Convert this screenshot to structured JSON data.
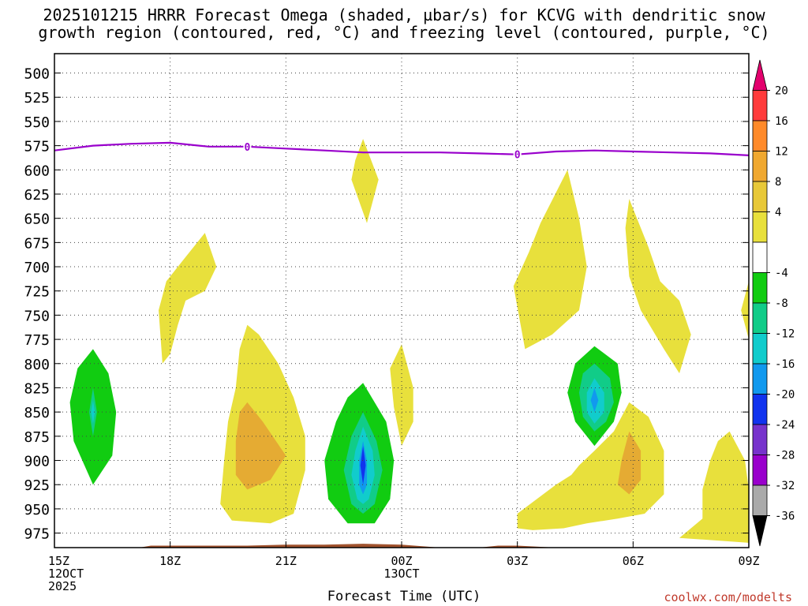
{
  "chart_data": {
    "type": "heatmap",
    "title_line1": "2025101215 HRRR Forecast Omega (shaded, µbar/s) for KCVG with dendritic snow",
    "title_line2": "growth region (contoured, red, °C) and freezing level (contoured, purple, °C)",
    "xlabel": "Forecast Time (UTC)",
    "credit": "coolwx.com/modelts",
    "x_range_hours": [
      0,
      18
    ],
    "x_ticks": [
      {
        "h": 0,
        "label": "15Z",
        "sub": [
          "12OCT",
          "2025"
        ]
      },
      {
        "h": 3,
        "label": "18Z",
        "sub": []
      },
      {
        "h": 6,
        "label": "21Z",
        "sub": []
      },
      {
        "h": 9,
        "label": "00Z",
        "sub": [
          "13OCT"
        ]
      },
      {
        "h": 12,
        "label": "03Z",
        "sub": []
      },
      {
        "h": 15,
        "label": "06Z",
        "sub": []
      },
      {
        "h": 18,
        "label": "09Z",
        "sub": []
      }
    ],
    "y_range_mb": [
      480,
      990
    ],
    "y_ticks": [
      500,
      525,
      550,
      575,
      600,
      625,
      650,
      675,
      700,
      725,
      750,
      775,
      800,
      825,
      850,
      875,
      900,
      925,
      950,
      975
    ],
    "freezing_level": {
      "color": "#9900cc",
      "label": "0",
      "label_points": [
        {
          "h": 5.0,
          "p": 576
        },
        {
          "h": 12.0,
          "p": 584
        }
      ],
      "points": [
        [
          0,
          580
        ],
        [
          1,
          575
        ],
        [
          2,
          573
        ],
        [
          3,
          572
        ],
        [
          4,
          576
        ],
        [
          5,
          576
        ],
        [
          6,
          578
        ],
        [
          7,
          580
        ],
        [
          8,
          582
        ],
        [
          9,
          582
        ],
        [
          10,
          582
        ],
        [
          11,
          583
        ],
        [
          12,
          584
        ],
        [
          13,
          581
        ],
        [
          14,
          580
        ],
        [
          15,
          581
        ],
        [
          16,
          582
        ],
        [
          17,
          583
        ],
        [
          18,
          585
        ]
      ]
    },
    "omega_regions": [
      {
        "level": "4",
        "points": [
          [
            2.8,
            800
          ],
          [
            2.7,
            745
          ],
          [
            2.9,
            715
          ],
          [
            3.3,
            695
          ],
          [
            3.9,
            665
          ],
          [
            4.2,
            700
          ],
          [
            3.9,
            725
          ],
          [
            3.4,
            735
          ],
          [
            3.2,
            760
          ],
          [
            3.0,
            790
          ]
        ]
      },
      {
        "level": "4",
        "points": [
          [
            8.0,
            568
          ],
          [
            8.4,
            610
          ],
          [
            8.1,
            655
          ],
          [
            7.7,
            610
          ],
          [
            7.8,
            590
          ]
        ]
      },
      {
        "level": "4",
        "points": [
          [
            5.0,
            760
          ],
          [
            5.3,
            770
          ],
          [
            5.8,
            800
          ],
          [
            6.2,
            835
          ],
          [
            6.5,
            875
          ],
          [
            6.5,
            910
          ],
          [
            6.2,
            955
          ],
          [
            5.6,
            965
          ],
          [
            4.6,
            962
          ],
          [
            4.3,
            945
          ],
          [
            4.4,
            900
          ],
          [
            4.5,
            860
          ],
          [
            4.7,
            825
          ],
          [
            4.8,
            785
          ]
        ]
      },
      {
        "level": "8",
        "points": [
          [
            5.0,
            840
          ],
          [
            5.4,
            860
          ],
          [
            6.0,
            895
          ],
          [
            5.6,
            920
          ],
          [
            5.0,
            930
          ],
          [
            4.7,
            915
          ],
          [
            4.7,
            880
          ],
          [
            4.8,
            850
          ]
        ]
      },
      {
        "level": "4",
        "points": [
          [
            9.0,
            780
          ],
          [
            9.3,
            825
          ],
          [
            9.3,
            860
          ],
          [
            9.0,
            885
          ],
          [
            8.8,
            845
          ],
          [
            8.7,
            805
          ]
        ]
      },
      {
        "level": "4",
        "points": [
          [
            13.3,
            600
          ],
          [
            13.6,
            650
          ],
          [
            13.8,
            700
          ],
          [
            13.6,
            745
          ],
          [
            12.9,
            770
          ],
          [
            12.2,
            785
          ],
          [
            11.9,
            720
          ],
          [
            12.3,
            685
          ],
          [
            12.6,
            655
          ]
        ]
      },
      {
        "level": "4",
        "points": [
          [
            14.9,
            630
          ],
          [
            15.4,
            680
          ],
          [
            15.7,
            715
          ],
          [
            16.2,
            735
          ],
          [
            16.5,
            770
          ],
          [
            16.2,
            810
          ],
          [
            15.8,
            785
          ],
          [
            15.2,
            745
          ],
          [
            14.9,
            710
          ],
          [
            14.8,
            660
          ]
        ]
      },
      {
        "level": "4",
        "points": [
          [
            18,
            715
          ],
          [
            17.8,
            745
          ],
          [
            18,
            775
          ]
        ]
      },
      {
        "level": "4",
        "points": [
          [
            12.0,
            955
          ],
          [
            12.5,
            940
          ],
          [
            13.0,
            925
          ],
          [
            13.4,
            915
          ],
          [
            13.6,
            905
          ],
          [
            14.0,
            890
          ],
          [
            14.5,
            870
          ],
          [
            14.9,
            840
          ],
          [
            15.4,
            855
          ],
          [
            15.8,
            890
          ],
          [
            15.8,
            935
          ],
          [
            15.3,
            955
          ],
          [
            14.6,
            960
          ],
          [
            13.8,
            965
          ],
          [
            13.2,
            970
          ],
          [
            12.4,
            972
          ],
          [
            12.0,
            970
          ]
        ]
      },
      {
        "level": "8",
        "points": [
          [
            14.9,
            870
          ],
          [
            15.2,
            890
          ],
          [
            15.2,
            920
          ],
          [
            14.9,
            935
          ],
          [
            14.6,
            925
          ],
          [
            14.7,
            900
          ]
        ]
      },
      {
        "level": "4",
        "points": [
          [
            16.2,
            980
          ],
          [
            16.8,
            960
          ],
          [
            16.8,
            930
          ],
          [
            17.0,
            900
          ],
          [
            17.2,
            880
          ],
          [
            17.5,
            870
          ],
          [
            17.9,
            900
          ],
          [
            18,
            930
          ],
          [
            18,
            985
          ]
        ]
      },
      {
        "level": "4",
        "points": [
          [
            17.0,
            980
          ],
          [
            17.3,
            950
          ],
          [
            18,
            948
          ],
          [
            18,
            985
          ]
        ]
      },
      {
        "level": "-4",
        "points": [
          [
            1.0,
            785
          ],
          [
            1.4,
            810
          ],
          [
            1.6,
            850
          ],
          [
            1.5,
            895
          ],
          [
            1.0,
            925
          ],
          [
            0.5,
            880
          ],
          [
            0.4,
            840
          ],
          [
            0.6,
            805
          ]
        ]
      },
      {
        "level": "-8",
        "points": [
          [
            1.0,
            825
          ],
          [
            1.1,
            850
          ],
          [
            1.0,
            875
          ],
          [
            0.9,
            850
          ]
        ]
      },
      {
        "level": "-12",
        "points": [
          [
            1.0,
            838
          ],
          [
            1.05,
            850
          ],
          [
            1.0,
            862
          ],
          [
            0.95,
            850
          ]
        ]
      },
      {
        "level": "-4",
        "points": [
          [
            8.0,
            820
          ],
          [
            8.6,
            860
          ],
          [
            8.8,
            900
          ],
          [
            8.7,
            940
          ],
          [
            8.3,
            965
          ],
          [
            7.6,
            965
          ],
          [
            7.1,
            940
          ],
          [
            7.0,
            900
          ],
          [
            7.3,
            860
          ],
          [
            7.6,
            835
          ]
        ]
      },
      {
        "level": "-8",
        "points": [
          [
            8.0,
            850
          ],
          [
            8.35,
            880
          ],
          [
            8.5,
            910
          ],
          [
            8.3,
            945
          ],
          [
            8.0,
            955
          ],
          [
            7.7,
            945
          ],
          [
            7.5,
            910
          ],
          [
            7.7,
            875
          ]
        ]
      },
      {
        "level": "-12",
        "points": [
          [
            8.0,
            865
          ],
          [
            8.25,
            890
          ],
          [
            8.3,
            915
          ],
          [
            8.15,
            940
          ],
          [
            8.0,
            945
          ],
          [
            7.85,
            940
          ],
          [
            7.7,
            915
          ],
          [
            7.8,
            890
          ]
        ]
      },
      {
        "level": "-16",
        "points": [
          [
            8.0,
            880
          ],
          [
            8.1,
            900
          ],
          [
            8.1,
            925
          ],
          [
            8.0,
            935
          ],
          [
            7.9,
            925
          ],
          [
            7.9,
            900
          ]
        ]
      },
      {
        "level": "-24",
        "points": [
          [
            8.0,
            885
          ],
          [
            8.07,
            905
          ],
          [
            8.0,
            925
          ],
          [
            7.93,
            905
          ]
        ]
      },
      {
        "level": "-4",
        "points": [
          [
            14.0,
            782
          ],
          [
            14.6,
            800
          ],
          [
            14.7,
            830
          ],
          [
            14.5,
            860
          ],
          [
            14.0,
            885
          ],
          [
            13.5,
            860
          ],
          [
            13.3,
            830
          ],
          [
            13.5,
            800
          ]
        ]
      },
      {
        "level": "-8",
        "points": [
          [
            14.0,
            800
          ],
          [
            14.4,
            815
          ],
          [
            14.5,
            840
          ],
          [
            14.3,
            860
          ],
          [
            14.0,
            870
          ],
          [
            13.7,
            855
          ],
          [
            13.6,
            830
          ],
          [
            13.7,
            810
          ]
        ]
      },
      {
        "level": "-12",
        "points": [
          [
            14.0,
            815
          ],
          [
            14.25,
            830
          ],
          [
            14.25,
            850
          ],
          [
            14.0,
            862
          ],
          [
            13.8,
            850
          ],
          [
            13.8,
            830
          ]
        ]
      },
      {
        "level": "-16",
        "points": [
          [
            14.0,
            825
          ],
          [
            14.1,
            838
          ],
          [
            14.0,
            850
          ],
          [
            13.9,
            838
          ]
        ]
      }
    ],
    "terrain": {
      "color": "#a0522d",
      "points": [
        [
          0,
          990
        ],
        [
          2.2,
          990
        ],
        [
          2.5,
          988
        ],
        [
          5,
          988
        ],
        [
          6,
          987
        ],
        [
          7,
          987
        ],
        [
          8,
          986
        ],
        [
          9,
          987
        ],
        [
          10,
          990
        ],
        [
          11,
          990
        ],
        [
          11.5,
          988
        ],
        [
          12,
          988
        ],
        [
          12.5,
          989
        ],
        [
          13,
          990
        ],
        [
          18,
          990
        ]
      ]
    },
    "colorbar": {
      "tick_labels": [
        "20",
        "16",
        "12",
        "8",
        "4",
        "-4",
        "-8",
        "-12",
        "-16",
        "-20",
        "-24",
        "-28",
        "-32",
        "-36"
      ],
      "bins": [
        {
          "color": "#e3006d"
        },
        {
          "color": "#ff3b3b"
        },
        {
          "color": "#ff8a2a"
        },
        {
          "color": "#f0a830"
        },
        {
          "color": "#e8c838"
        },
        {
          "color": "#e8e03c"
        },
        {
          "color": "#ffffff"
        },
        {
          "color": "#11cc11"
        },
        {
          "color": "#11cc88"
        },
        {
          "color": "#11cccc"
        },
        {
          "color": "#1199ee"
        },
        {
          "color": "#1133ee"
        },
        {
          "color": "#7733cc"
        },
        {
          "color": "#9900cc"
        },
        {
          "color": "#aaaaaa"
        },
        {
          "color": "#000000"
        }
      ]
    },
    "level_colors": {
      "8": "#e5ab33",
      "4": "#e8e03c",
      "-4": "#11cc11",
      "-8": "#11cc88",
      "-12": "#11cccc",
      "-16": "#1199ee",
      "-24": "#1133ee"
    }
  }
}
